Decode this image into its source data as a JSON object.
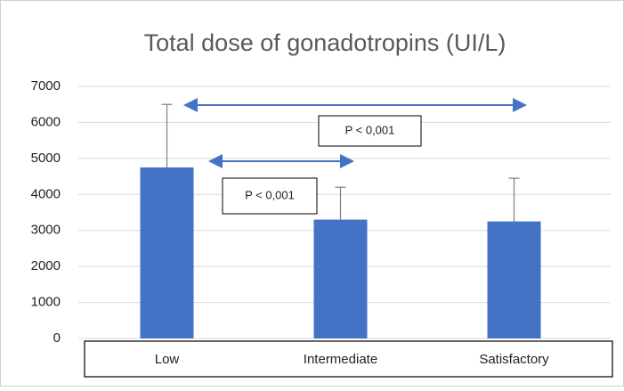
{
  "chart_data": {
    "type": "bar",
    "title": "Total dose of gonadotropins (UI/L)",
    "categories": [
      "Low",
      "Intermediate",
      "Satisfactory"
    ],
    "values": [
      4750,
      3300,
      3250
    ],
    "errors": [
      1750,
      900,
      1200
    ],
    "color": "#4472c4",
    "ylim": [
      0,
      7000
    ],
    "yticks": [
      0,
      1000,
      2000,
      3000,
      4000,
      5000,
      6000,
      7000
    ],
    "grid": true,
    "annotations": [
      "P < 0,001",
      "P < 0,001"
    ]
  }
}
